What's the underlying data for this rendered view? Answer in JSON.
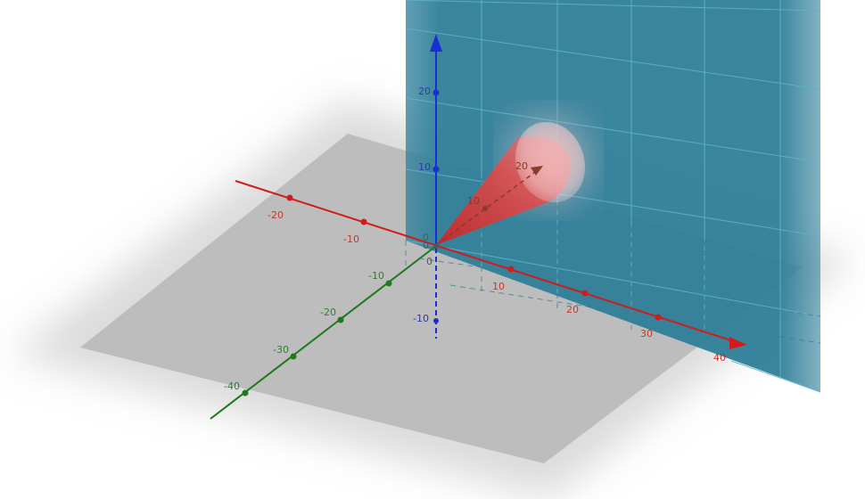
{
  "axes": {
    "x": {
      "color": "#d01c1c",
      "negative_ticks": [
        "-20",
        "-10"
      ],
      "positive_ticks": [
        "10",
        "20",
        "30",
        "40"
      ]
    },
    "y": {
      "color": "#1e7a1e",
      "ticks": [
        "-10",
        "-20",
        "-30",
        "-40"
      ]
    },
    "z": {
      "color": "#1a2fd0",
      "ticks": [
        "20",
        "10",
        "-10"
      ]
    },
    "origin_labels": [
      "0",
      "0",
      "0"
    ]
  },
  "cone": {
    "color": "#e03a3a",
    "axis_ticks": [
      "10",
      "20"
    ]
  },
  "plane": {
    "color": "#2f7f99"
  },
  "floor": {
    "color": "#bdbdbd"
  }
}
